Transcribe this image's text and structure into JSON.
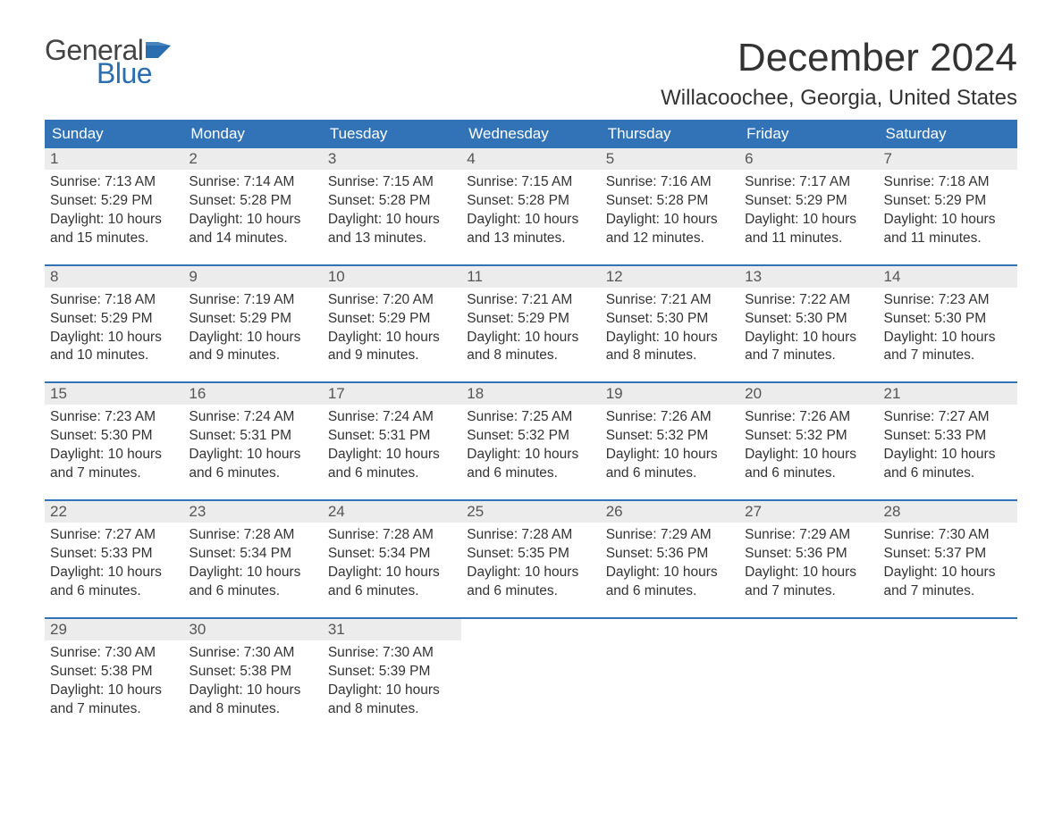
{
  "logo": {
    "text1": "General",
    "text2": "Blue",
    "flag_color": "#2a6eb0"
  },
  "header": {
    "month_title": "December 2024",
    "location": "Willacoochee, Georgia, United States"
  },
  "colors": {
    "header_bg": "#3173b6",
    "header_text": "#ffffff",
    "daynum_bg": "#ececec",
    "row_border": "#3173b6",
    "body_text": "#333333",
    "logo_accent": "#2a6eb0",
    "page_bg": "#ffffff"
  },
  "typography": {
    "month_title_pt": 44,
    "location_pt": 24,
    "weekday_pt": 17,
    "daynum_pt": 17,
    "cell_pt": 15.5
  },
  "layout": {
    "columns": 7,
    "week_start": "Sunday"
  },
  "weekdays": [
    "Sunday",
    "Monday",
    "Tuesday",
    "Wednesday",
    "Thursday",
    "Friday",
    "Saturday"
  ],
  "weeks": [
    [
      {
        "day": "1",
        "sunrise": "Sunrise: 7:13 AM",
        "sunset": "Sunset: 5:29 PM",
        "daylight1": "Daylight: 10 hours",
        "daylight2": "and 15 minutes."
      },
      {
        "day": "2",
        "sunrise": "Sunrise: 7:14 AM",
        "sunset": "Sunset: 5:28 PM",
        "daylight1": "Daylight: 10 hours",
        "daylight2": "and 14 minutes."
      },
      {
        "day": "3",
        "sunrise": "Sunrise: 7:15 AM",
        "sunset": "Sunset: 5:28 PM",
        "daylight1": "Daylight: 10 hours",
        "daylight2": "and 13 minutes."
      },
      {
        "day": "4",
        "sunrise": "Sunrise: 7:15 AM",
        "sunset": "Sunset: 5:28 PM",
        "daylight1": "Daylight: 10 hours",
        "daylight2": "and 13 minutes."
      },
      {
        "day": "5",
        "sunrise": "Sunrise: 7:16 AM",
        "sunset": "Sunset: 5:28 PM",
        "daylight1": "Daylight: 10 hours",
        "daylight2": "and 12 minutes."
      },
      {
        "day": "6",
        "sunrise": "Sunrise: 7:17 AM",
        "sunset": "Sunset: 5:29 PM",
        "daylight1": "Daylight: 10 hours",
        "daylight2": "and 11 minutes."
      },
      {
        "day": "7",
        "sunrise": "Sunrise: 7:18 AM",
        "sunset": "Sunset: 5:29 PM",
        "daylight1": "Daylight: 10 hours",
        "daylight2": "and 11 minutes."
      }
    ],
    [
      {
        "day": "8",
        "sunrise": "Sunrise: 7:18 AM",
        "sunset": "Sunset: 5:29 PM",
        "daylight1": "Daylight: 10 hours",
        "daylight2": "and 10 minutes."
      },
      {
        "day": "9",
        "sunrise": "Sunrise: 7:19 AM",
        "sunset": "Sunset: 5:29 PM",
        "daylight1": "Daylight: 10 hours",
        "daylight2": "and 9 minutes."
      },
      {
        "day": "10",
        "sunrise": "Sunrise: 7:20 AM",
        "sunset": "Sunset: 5:29 PM",
        "daylight1": "Daylight: 10 hours",
        "daylight2": "and 9 minutes."
      },
      {
        "day": "11",
        "sunrise": "Sunrise: 7:21 AM",
        "sunset": "Sunset: 5:29 PM",
        "daylight1": "Daylight: 10 hours",
        "daylight2": "and 8 minutes."
      },
      {
        "day": "12",
        "sunrise": "Sunrise: 7:21 AM",
        "sunset": "Sunset: 5:30 PM",
        "daylight1": "Daylight: 10 hours",
        "daylight2": "and 8 minutes."
      },
      {
        "day": "13",
        "sunrise": "Sunrise: 7:22 AM",
        "sunset": "Sunset: 5:30 PM",
        "daylight1": "Daylight: 10 hours",
        "daylight2": "and 7 minutes."
      },
      {
        "day": "14",
        "sunrise": "Sunrise: 7:23 AM",
        "sunset": "Sunset: 5:30 PM",
        "daylight1": "Daylight: 10 hours",
        "daylight2": "and 7 minutes."
      }
    ],
    [
      {
        "day": "15",
        "sunrise": "Sunrise: 7:23 AM",
        "sunset": "Sunset: 5:30 PM",
        "daylight1": "Daylight: 10 hours",
        "daylight2": "and 7 minutes."
      },
      {
        "day": "16",
        "sunrise": "Sunrise: 7:24 AM",
        "sunset": "Sunset: 5:31 PM",
        "daylight1": "Daylight: 10 hours",
        "daylight2": "and 6 minutes."
      },
      {
        "day": "17",
        "sunrise": "Sunrise: 7:24 AM",
        "sunset": "Sunset: 5:31 PM",
        "daylight1": "Daylight: 10 hours",
        "daylight2": "and 6 minutes."
      },
      {
        "day": "18",
        "sunrise": "Sunrise: 7:25 AM",
        "sunset": "Sunset: 5:32 PM",
        "daylight1": "Daylight: 10 hours",
        "daylight2": "and 6 minutes."
      },
      {
        "day": "19",
        "sunrise": "Sunrise: 7:26 AM",
        "sunset": "Sunset: 5:32 PM",
        "daylight1": "Daylight: 10 hours",
        "daylight2": "and 6 minutes."
      },
      {
        "day": "20",
        "sunrise": "Sunrise: 7:26 AM",
        "sunset": "Sunset: 5:32 PM",
        "daylight1": "Daylight: 10 hours",
        "daylight2": "and 6 minutes."
      },
      {
        "day": "21",
        "sunrise": "Sunrise: 7:27 AM",
        "sunset": "Sunset: 5:33 PM",
        "daylight1": "Daylight: 10 hours",
        "daylight2": "and 6 minutes."
      }
    ],
    [
      {
        "day": "22",
        "sunrise": "Sunrise: 7:27 AM",
        "sunset": "Sunset: 5:33 PM",
        "daylight1": "Daylight: 10 hours",
        "daylight2": "and 6 minutes."
      },
      {
        "day": "23",
        "sunrise": "Sunrise: 7:28 AM",
        "sunset": "Sunset: 5:34 PM",
        "daylight1": "Daylight: 10 hours",
        "daylight2": "and 6 minutes."
      },
      {
        "day": "24",
        "sunrise": "Sunrise: 7:28 AM",
        "sunset": "Sunset: 5:34 PM",
        "daylight1": "Daylight: 10 hours",
        "daylight2": "and 6 minutes."
      },
      {
        "day": "25",
        "sunrise": "Sunrise: 7:28 AM",
        "sunset": "Sunset: 5:35 PM",
        "daylight1": "Daylight: 10 hours",
        "daylight2": "and 6 minutes."
      },
      {
        "day": "26",
        "sunrise": "Sunrise: 7:29 AM",
        "sunset": "Sunset: 5:36 PM",
        "daylight1": "Daylight: 10 hours",
        "daylight2": "and 6 minutes."
      },
      {
        "day": "27",
        "sunrise": "Sunrise: 7:29 AM",
        "sunset": "Sunset: 5:36 PM",
        "daylight1": "Daylight: 10 hours",
        "daylight2": "and 7 minutes."
      },
      {
        "day": "28",
        "sunrise": "Sunrise: 7:30 AM",
        "sunset": "Sunset: 5:37 PM",
        "daylight1": "Daylight: 10 hours",
        "daylight2": "and 7 minutes."
      }
    ],
    [
      {
        "day": "29",
        "sunrise": "Sunrise: 7:30 AM",
        "sunset": "Sunset: 5:38 PM",
        "daylight1": "Daylight: 10 hours",
        "daylight2": "and 7 minutes."
      },
      {
        "day": "30",
        "sunrise": "Sunrise: 7:30 AM",
        "sunset": "Sunset: 5:38 PM",
        "daylight1": "Daylight: 10 hours",
        "daylight2": "and 8 minutes."
      },
      {
        "day": "31",
        "sunrise": "Sunrise: 7:30 AM",
        "sunset": "Sunset: 5:39 PM",
        "daylight1": "Daylight: 10 hours",
        "daylight2": "and 8 minutes."
      },
      null,
      null,
      null,
      null
    ]
  ]
}
